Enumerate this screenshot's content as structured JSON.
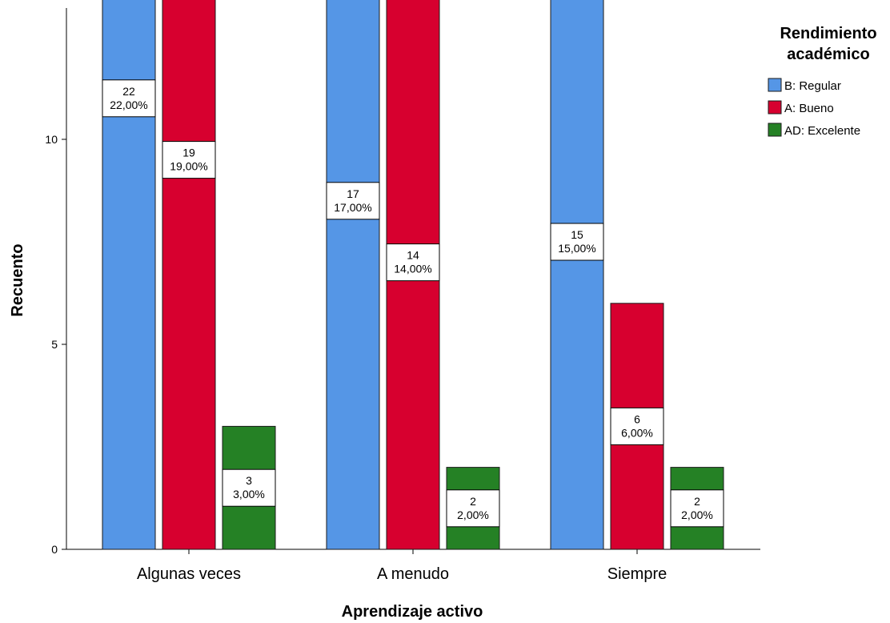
{
  "chart_data": {
    "type": "bar",
    "categories": [
      "Algunas veces",
      "A menudo",
      "Siempre"
    ],
    "xlabel": "Aprendizaje activo",
    "ylabel": "Recuento",
    "ylim": [
      0,
      26
    ],
    "yticks": [
      0,
      5,
      10,
      15,
      20,
      25
    ],
    "grid": false,
    "legend": {
      "title_line1": "Rendimiento",
      "title_line2": "académico",
      "placement": "top-right"
    },
    "series": [
      {
        "name": "B: Regular",
        "color": "#5596e6",
        "values": [
          22,
          17,
          15
        ],
        "labels": [
          [
            "22",
            "22,00%"
          ],
          [
            "17",
            "17,00%"
          ],
          [
            "15",
            "15,00%"
          ]
        ]
      },
      {
        "name": "A: Bueno",
        "color": "#d7002f",
        "values": [
          19,
          14,
          6
        ],
        "labels": [
          [
            "19",
            "19,00%"
          ],
          [
            "14",
            "14,00%"
          ],
          [
            "6",
            "6,00%"
          ]
        ]
      },
      {
        "name": "AD: Excelente",
        "color": "#258125",
        "values": [
          3,
          2,
          2
        ],
        "labels": [
          [
            "3",
            "3,00%"
          ],
          [
            "2",
            "2,00%"
          ],
          [
            "2",
            "2,00%"
          ]
        ]
      }
    ]
  }
}
